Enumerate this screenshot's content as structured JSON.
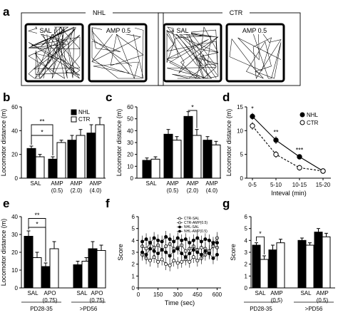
{
  "figure": {
    "panel_letters": [
      "a",
      "b",
      "c",
      "d",
      "e",
      "f",
      "g"
    ],
    "panel_a": {
      "group_left": "NHL",
      "group_right": "CTR",
      "box_labels": [
        "SAL",
        "AMP 0.5",
        "SAL",
        "AMP 0.5"
      ]
    },
    "panel_e": {
      "group_labels": [
        "PD28-35",
        ">PD56"
      ]
    },
    "panel_g": {
      "group_labels": [
        "PD28-35",
        ">PD56"
      ]
    }
  },
  "chart_data": [
    {
      "panel": "b",
      "type": "bar",
      "ylabel": "Locomotor distance (m)",
      "ylim": [
        0,
        60
      ],
      "yticks": [
        0,
        20,
        40,
        60
      ],
      "categories": [
        [
          "SAL"
        ],
        [
          "AMP",
          "(0.5)"
        ],
        [
          "AMP",
          "(2.0)"
        ],
        [
          "AMP",
          "(4.0)"
        ]
      ],
      "series": [
        {
          "name": "NHL",
          "color": "#000000",
          "values": [
            25,
            16,
            32,
            38
          ],
          "err": [
            2,
            2,
            4,
            7
          ]
        },
        {
          "name": "CTR",
          "color": "#ffffff",
          "values": [
            18,
            30,
            36,
            45
          ],
          "err": [
            2,
            2,
            5,
            6
          ]
        }
      ],
      "legend": "top-left",
      "sig": [
        {
          "text": "*",
          "x1": 0,
          "x2": 1,
          "s1": 0,
          "s2": 0,
          "y": 36
        },
        {
          "text": "**",
          "x1": 0,
          "x2": 1,
          "s1": 0,
          "s2": 0,
          "y": 45
        }
      ]
    },
    {
      "panel": "c",
      "type": "bar",
      "ylabel": "Locomotor distance (m)",
      "ylim": [
        0,
        60
      ],
      "yticks": [
        0,
        10,
        20,
        30,
        40,
        50,
        60
      ],
      "categories": [
        [
          "SAL"
        ],
        [
          "AMP",
          "(0.5)"
        ],
        [
          "AMP",
          "(2.0)"
        ],
        [
          "AMP",
          "(4.0)"
        ]
      ],
      "series": [
        {
          "name": "NHL",
          "color": "#000000",
          "values": [
            15,
            37,
            52,
            32
          ],
          "err": [
            2,
            4,
            4,
            3
          ]
        },
        {
          "name": "CTR",
          "color": "#ffffff",
          "values": [
            16,
            32,
            36,
            28
          ],
          "err": [
            2,
            3,
            5,
            3
          ]
        }
      ],
      "sig": [
        {
          "text": "*",
          "x1": 2,
          "x2": 2,
          "s1": 0,
          "s2": 1,
          "y": 57
        }
      ]
    },
    {
      "panel": "d",
      "type": "line",
      "ylabel": "Locomotor distance (m)",
      "xlabel": "Inteval (min)",
      "ylim": [
        0,
        15
      ],
      "yticks": [
        0,
        5,
        10,
        15
      ],
      "categories": [
        "0-5",
        "5-10",
        "10-15",
        "15-20"
      ],
      "series": [
        {
          "name": "NHL",
          "values": [
            13,
            8,
            4.5,
            1.5
          ],
          "err": [
            0.7,
            0.8,
            0.5,
            0.4
          ],
          "marker": "filled",
          "dashed": false
        },
        {
          "name": "CTR",
          "values": [
            11,
            5,
            2.2,
            1.5
          ],
          "err": [
            0.8,
            0.7,
            0.6,
            0.3
          ],
          "marker": "open",
          "dashed": true
        }
      ],
      "stars": [
        "*",
        "**",
        "***",
        ""
      ],
      "legend": "top-right"
    },
    {
      "panel": "e",
      "type": "bar",
      "ylabel": "Locomotor distance (m)",
      "ylim": [
        0,
        40
      ],
      "yticks": [
        0,
        10,
        20,
        30,
        40
      ],
      "categories": [
        [
          "SAL"
        ],
        [
          "APO",
          "(0.75)"
        ],
        [
          "SAL"
        ],
        [
          "APO",
          "(0.75)"
        ]
      ],
      "series": [
        {
          "name": "NHL",
          "color": "#000000",
          "values": [
            29,
            12,
            13,
            22
          ],
          "err": [
            3,
            2,
            2,
            4
          ]
        },
        {
          "name": "CTR",
          "color": "#ffffff",
          "values": [
            17,
            22,
            15,
            21
          ],
          "err": [
            3,
            4,
            2,
            3
          ]
        }
      ],
      "sig": [
        {
          "text": "*",
          "x1": 0,
          "x2": 1,
          "s1": 0,
          "s2": 0,
          "y": 34
        },
        {
          "text": "**",
          "x1": 0,
          "x2": 1,
          "s1": 0,
          "s2": 0,
          "y": 39
        }
      ]
    },
    {
      "panel": "f",
      "type": "line",
      "ylabel": "Score",
      "xlabel": "Time (sec)",
      "xlim": [
        0,
        630
      ],
      "xticks": [
        0,
        150,
        300,
        450,
        600
      ],
      "ylim": [
        0,
        6
      ],
      "yticks": [
        0,
        1,
        2,
        3,
        4,
        5,
        6
      ],
      "x": [
        30,
        60,
        90,
        120,
        150,
        180,
        210,
        240,
        270,
        300,
        330,
        360,
        390,
        420,
        450,
        480,
        510,
        540,
        570,
        600
      ],
      "series": [
        {
          "name": "CTR-SAL",
          "marker": "open",
          "values": [
            2.8,
            2.5,
            2.3,
            2.6,
            2.2,
            2.4,
            2.0,
            1.9,
            2.3,
            2.1,
            2.2,
            2.4,
            2.2,
            2.6,
            2.3,
            2.5,
            2.8,
            3.0,
            3.6,
            4.2
          ]
        },
        {
          "name": "CTR-AMP(0.5)",
          "marker": "open",
          "values": [
            3.5,
            3.3,
            3.8,
            3.4,
            3.6,
            3.2,
            3.5,
            3.7,
            3.3,
            3.4,
            3.6,
            3.1,
            3.3,
            3.5,
            3.2,
            3.4,
            3.3,
            3.1,
            3.5,
            3.4
          ]
        },
        {
          "name": "NHL-SAL",
          "marker": "filled",
          "values": [
            3.0,
            2.8,
            3.3,
            3.1,
            2.9,
            3.2,
            3.0,
            2.7,
            3.1,
            3.3,
            2.9,
            2.6,
            2.9,
            3.2,
            3.0,
            2.8,
            3.1,
            2.9,
            2.5,
            2.8
          ]
        },
        {
          "name": "NHL-AMP(0.5)",
          "marker": "filled",
          "values": [
            3.9,
            4.1,
            3.8,
            4.2,
            4.0,
            3.9,
            4.3,
            4.1,
            3.9,
            4.2,
            4.0,
            4.1,
            3.8,
            4.0,
            4.2,
            3.9,
            4.1,
            4.0,
            3.8,
            3.8
          ]
        }
      ],
      "legend": "top-right"
    },
    {
      "panel": "g",
      "type": "bar",
      "ylabel": "Score",
      "ylim": [
        0,
        6
      ],
      "yticks": [
        0,
        1,
        2,
        3,
        4,
        5,
        6
      ],
      "categories": [
        [
          "SAL"
        ],
        [
          "AMP",
          "(0.5)"
        ],
        [
          "SAL"
        ],
        [
          "AMP",
          "(0.5)"
        ]
      ],
      "series": [
        {
          "name": "NHL",
          "color": "#000000",
          "values": [
            3.6,
            3.2,
            4.0,
            4.7
          ],
          "err": [
            0.2,
            0.4,
            0.2,
            0.3
          ]
        },
        {
          "name": "CTR",
          "color": "#ffffff",
          "values": [
            2.4,
            3.8,
            3.6,
            4.3
          ],
          "err": [
            0.3,
            0.3,
            0.2,
            0.3
          ]
        }
      ],
      "sig": [
        {
          "text": "*",
          "x1": 0,
          "x2": 0,
          "s1": 0,
          "s2": 1,
          "y": 4.3
        }
      ]
    }
  ]
}
